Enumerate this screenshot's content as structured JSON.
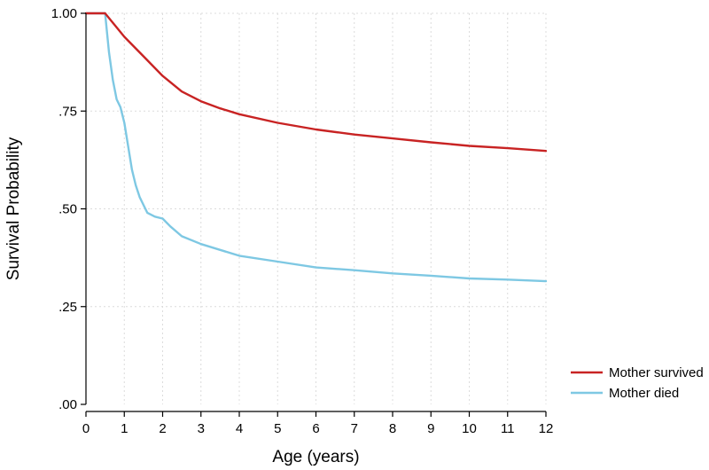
{
  "chart_data": {
    "type": "line",
    "title": "",
    "xlabel": "Age (years)",
    "ylabel": "Survival Probability",
    "xlim": [
      0,
      12
    ],
    "ylim": [
      0,
      1
    ],
    "x_ticks": [
      0,
      1,
      2,
      3,
      4,
      5,
      6,
      7,
      8,
      9,
      10,
      11,
      12
    ],
    "x_tick_labels": [
      "0",
      "1",
      "2",
      "3",
      "4",
      "5",
      "6",
      "7",
      "8",
      "9",
      "10",
      "11",
      "12"
    ],
    "y_ticks": [
      0,
      0.25,
      0.5,
      0.75,
      1.0
    ],
    "y_tick_labels": [
      ".00",
      ".25",
      ".50",
      ".75",
      "1.00"
    ],
    "grid": true,
    "legend_position": "bottom-right",
    "series": [
      {
        "name": "Mother survived",
        "color": "#c82323",
        "x": [
          0,
          0.5,
          1.0,
          1.5,
          2.0,
          2.5,
          3.0,
          3.5,
          4.0,
          5.0,
          6.0,
          7.0,
          8.0,
          9.0,
          10.0,
          11.0,
          12.0
        ],
        "y": [
          1.0,
          1.0,
          0.94,
          0.89,
          0.84,
          0.8,
          0.775,
          0.757,
          0.742,
          0.72,
          0.703,
          0.69,
          0.68,
          0.67,
          0.661,
          0.655,
          0.648
        ]
      },
      {
        "name": "Mother died",
        "color": "#7ec8e3",
        "x": [
          0,
          0.5,
          0.55,
          0.6,
          0.7,
          0.8,
          0.9,
          1.0,
          1.1,
          1.2,
          1.3,
          1.4,
          1.5,
          1.6,
          1.8,
          2.0,
          2.2,
          2.5,
          3.0,
          3.5,
          4.0,
          5.0,
          6.0,
          7.0,
          8.0,
          9.0,
          10.0,
          11.0,
          12.0
        ],
        "y": [
          1.0,
          1.0,
          0.95,
          0.9,
          0.83,
          0.78,
          0.76,
          0.72,
          0.66,
          0.6,
          0.56,
          0.53,
          0.51,
          0.49,
          0.48,
          0.475,
          0.455,
          0.43,
          0.41,
          0.395,
          0.38,
          0.365,
          0.35,
          0.343,
          0.335,
          0.329,
          0.322,
          0.319,
          0.315
        ]
      }
    ]
  }
}
